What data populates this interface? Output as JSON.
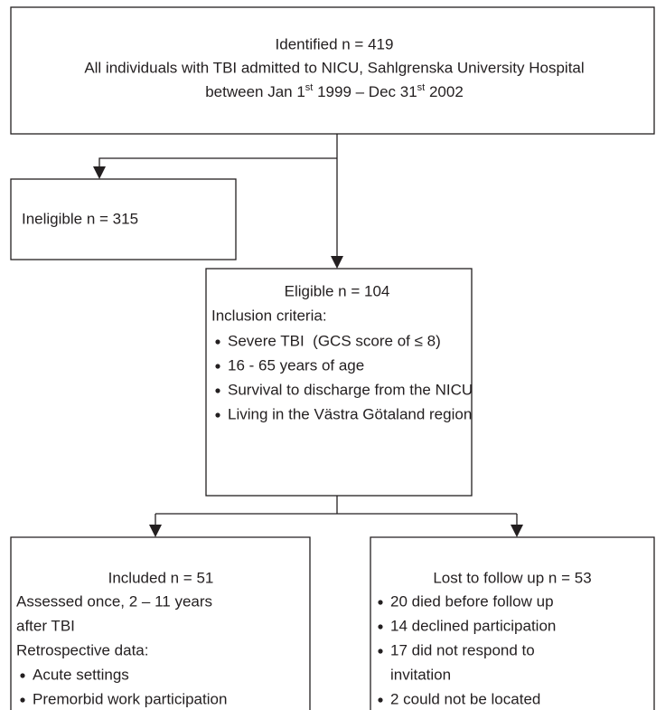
{
  "identified": {
    "title": "Identified n = 419",
    "description": "All individuals with TBI admitted to NICU, Sahlgrenska University Hospital",
    "period": [
      "between Jan 1",
      "st",
      " 1999 – Dec 31",
      "st",
      " 2002"
    ]
  },
  "ineligible": {
    "title": "Ineligible n = 315"
  },
  "eligible": {
    "title": "Eligible n = 104",
    "subtitle": "Inclusion criteria:",
    "items": [
      "Severe TBI  (GCS score of ≤ 8)",
      "16 - 65 years of age",
      "Survival to discharge from the NICU",
      "Living in the Västra Götaland region"
    ]
  },
  "included": {
    "title": "Included n = 51",
    "lines": [
      "Assessed once, 2 – 11 years",
      "after TBI",
      "Retrospective data:"
    ],
    "items": [
      "Acute settings",
      "Premorbid work participation"
    ]
  },
  "lost": {
    "title": "Lost to follow up n = 53",
    "items": [
      [
        "20 died before follow up"
      ],
      [
        "14 declined participation"
      ],
      [
        "17 did not respond to",
        "invitation"
      ],
      [
        "2 could not be located"
      ]
    ]
  }
}
